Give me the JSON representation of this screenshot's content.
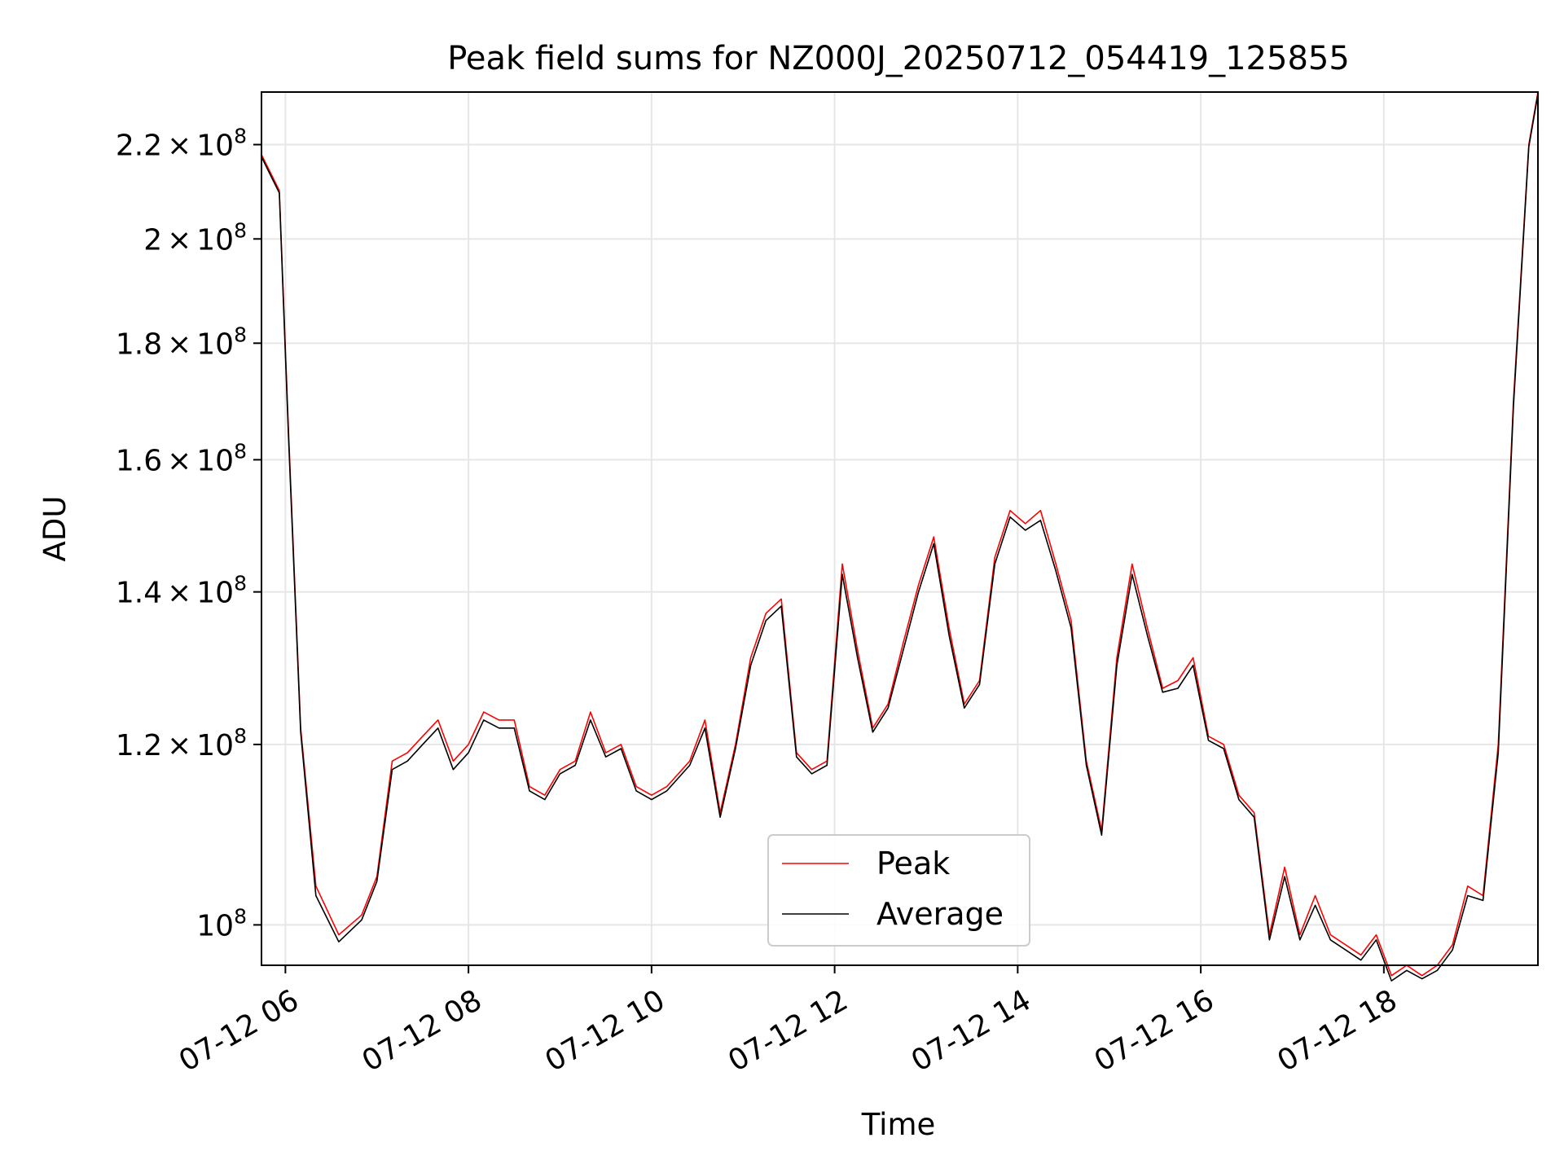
{
  "chart_data": {
    "type": "line",
    "title": "Peak field sums for NZ000J_20250712_054419_125855",
    "xlabel": "Time",
    "ylabel": "ADU",
    "y_scale": "log",
    "xlim": [
      "2025-07-12 05:44:19",
      "2025-07-12 19:41:00"
    ],
    "ylim": [
      96000000,
      232000000
    ],
    "grid": true,
    "legend_position": "lower center",
    "x_ticks": [
      {
        "value": "2025-07-12 06:00",
        "label": "07-12 06"
      },
      {
        "value": "2025-07-12 08:00",
        "label": "07-12 08"
      },
      {
        "value": "2025-07-12 10:00",
        "label": "07-12 10"
      },
      {
        "value": "2025-07-12 12:00",
        "label": "07-12 12"
      },
      {
        "value": "2025-07-12 14:00",
        "label": "07-12 14"
      },
      {
        "value": "2025-07-12 16:00",
        "label": "07-12 16"
      },
      {
        "value": "2025-07-12 18:00",
        "label": "07-12 18"
      }
    ],
    "y_ticks": [
      {
        "value": 100000000,
        "mantissa": "",
        "exponent": "8"
      },
      {
        "value": 120000000,
        "mantissa": "1.2",
        "exponent": "8"
      },
      {
        "value": 140000000,
        "mantissa": "1.4",
        "exponent": "8"
      },
      {
        "value": 160000000,
        "mantissa": "1.6",
        "exponent": "8"
      },
      {
        "value": 180000000,
        "mantissa": "1.8",
        "exponent": "8"
      },
      {
        "value": 200000000,
        "mantissa": "2",
        "exponent": "8"
      },
      {
        "value": 220000000,
        "mantissa": "2.2",
        "exponent": "8"
      }
    ],
    "series": [
      {
        "name": "Peak",
        "color": "#ff0000",
        "x": [
          "2025-07-12 05:44",
          "2025-07-12 05:56",
          "2025-07-12 06:02",
          "2025-07-12 06:10",
          "2025-07-12 06:20",
          "2025-07-12 06:35",
          "2025-07-12 06:50",
          "2025-07-12 07:00",
          "2025-07-12 07:10",
          "2025-07-12 07:20",
          "2025-07-12 07:30",
          "2025-07-12 07:40",
          "2025-07-12 07:50",
          "2025-07-12 08:00",
          "2025-07-12 08:10",
          "2025-07-12 08:20",
          "2025-07-12 08:30",
          "2025-07-12 08:40",
          "2025-07-12 08:50",
          "2025-07-12 09:00",
          "2025-07-12 09:10",
          "2025-07-12 09:20",
          "2025-07-12 09:30",
          "2025-07-12 09:40",
          "2025-07-12 09:50",
          "2025-07-12 10:00",
          "2025-07-12 10:10",
          "2025-07-12 10:25",
          "2025-07-12 10:35",
          "2025-07-12 10:45",
          "2025-07-12 10:55",
          "2025-07-12 11:05",
          "2025-07-12 11:15",
          "2025-07-12 11:25",
          "2025-07-12 11:35",
          "2025-07-12 11:45",
          "2025-07-12 11:55",
          "2025-07-12 12:05",
          "2025-07-12 12:15",
          "2025-07-12 12:25",
          "2025-07-12 12:35",
          "2025-07-12 12:45",
          "2025-07-12 12:55",
          "2025-07-12 13:05",
          "2025-07-12 13:15",
          "2025-07-12 13:25",
          "2025-07-12 13:35",
          "2025-07-12 13:45",
          "2025-07-12 13:55",
          "2025-07-12 14:05",
          "2025-07-12 14:15",
          "2025-07-12 14:25",
          "2025-07-12 14:35",
          "2025-07-12 14:45",
          "2025-07-12 14:55",
          "2025-07-12 15:05",
          "2025-07-12 15:15",
          "2025-07-12 15:25",
          "2025-07-12 15:35",
          "2025-07-12 15:45",
          "2025-07-12 15:55",
          "2025-07-12 16:05",
          "2025-07-12 16:15",
          "2025-07-12 16:25",
          "2025-07-12 16:35",
          "2025-07-12 16:45",
          "2025-07-12 16:55",
          "2025-07-12 17:05",
          "2025-07-12 17:15",
          "2025-07-12 17:25",
          "2025-07-12 17:35",
          "2025-07-12 17:45",
          "2025-07-12 17:55",
          "2025-07-12 18:05",
          "2025-07-12 18:15",
          "2025-07-12 18:25",
          "2025-07-12 18:35",
          "2025-07-12 18:45",
          "2025-07-12 18:55",
          "2025-07-12 19:05",
          "2025-07-12 19:15",
          "2025-07-12 19:25",
          "2025-07-12 19:35",
          "2025-07-12 19:41"
        ],
        "values": [
          218000000,
          210000000,
          165000000,
          122000000,
          104000000,
          99000000,
          101000000,
          105000000,
          118000000,
          119000000,
          121000000,
          123000000,
          118000000,
          120000000,
          124000000,
          123000000,
          123000000,
          115000000,
          114000000,
          117000000,
          118000000,
          124000000,
          119000000,
          120000000,
          115000000,
          114000000,
          115000000,
          118000000,
          123000000,
          112000000,
          120000000,
          131000000,
          137000000,
          139000000,
          119000000,
          117000000,
          118000000,
          144000000,
          132000000,
          122000000,
          125000000,
          133000000,
          141000000,
          148000000,
          135000000,
          125000000,
          128000000,
          145000000,
          152000000,
          150000000,
          152000000,
          144000000,
          136000000,
          118000000,
          110000000,
          131000000,
          144000000,
          135000000,
          127000000,
          128000000,
          131000000,
          121000000,
          120000000,
          114000000,
          112000000,
          99000000,
          106000000,
          99000000,
          103000000,
          99000000,
          98000000,
          97000000,
          99000000,
          95000000,
          96000000,
          95000000,
          96000000,
          98000000,
          104000000,
          103000000,
          120000000,
          170000000,
          220000000,
          232000000
        ]
      },
      {
        "name": "Average",
        "color": "#000000",
        "x": [
          "2025-07-12 05:44",
          "2025-07-12 05:56",
          "2025-07-12 06:02",
          "2025-07-12 06:10",
          "2025-07-12 06:20",
          "2025-07-12 06:35",
          "2025-07-12 06:50",
          "2025-07-12 07:00",
          "2025-07-12 07:10",
          "2025-07-12 07:20",
          "2025-07-12 07:30",
          "2025-07-12 07:40",
          "2025-07-12 07:50",
          "2025-07-12 08:00",
          "2025-07-12 08:10",
          "2025-07-12 08:20",
          "2025-07-12 08:30",
          "2025-07-12 08:40",
          "2025-07-12 08:50",
          "2025-07-12 09:00",
          "2025-07-12 09:10",
          "2025-07-12 09:20",
          "2025-07-12 09:30",
          "2025-07-12 09:40",
          "2025-07-12 09:50",
          "2025-07-12 10:00",
          "2025-07-12 10:10",
          "2025-07-12 10:25",
          "2025-07-12 10:35",
          "2025-07-12 10:45",
          "2025-07-12 10:55",
          "2025-07-12 11:05",
          "2025-07-12 11:15",
          "2025-07-12 11:25",
          "2025-07-12 11:35",
          "2025-07-12 11:45",
          "2025-07-12 11:55",
          "2025-07-12 12:05",
          "2025-07-12 12:15",
          "2025-07-12 12:25",
          "2025-07-12 12:35",
          "2025-07-12 12:45",
          "2025-07-12 12:55",
          "2025-07-12 13:05",
          "2025-07-12 13:15",
          "2025-07-12 13:25",
          "2025-07-12 13:35",
          "2025-07-12 13:45",
          "2025-07-12 13:55",
          "2025-07-12 14:05",
          "2025-07-12 14:15",
          "2025-07-12 14:25",
          "2025-07-12 14:35",
          "2025-07-12 14:45",
          "2025-07-12 14:55",
          "2025-07-12 15:05",
          "2025-07-12 15:15",
          "2025-07-12 15:25",
          "2025-07-12 15:35",
          "2025-07-12 15:45",
          "2025-07-12 15:55",
          "2025-07-12 16:05",
          "2025-07-12 16:15",
          "2025-07-12 16:25",
          "2025-07-12 16:35",
          "2025-07-12 16:45",
          "2025-07-12 16:55",
          "2025-07-12 17:05",
          "2025-07-12 17:15",
          "2025-07-12 17:25",
          "2025-07-12 17:35",
          "2025-07-12 17:45",
          "2025-07-12 17:55",
          "2025-07-12 18:05",
          "2025-07-12 18:15",
          "2025-07-12 18:25",
          "2025-07-12 18:35",
          "2025-07-12 18:45",
          "2025-07-12 18:55",
          "2025-07-12 19:05",
          "2025-07-12 19:15",
          "2025-07-12 19:25",
          "2025-07-12 19:35",
          "2025-07-12 19:41"
        ],
        "values": [
          217500000,
          209500000,
          164000000,
          121500000,
          103000000,
          98300000,
          100500000,
          104500000,
          117000000,
          118000000,
          120000000,
          122000000,
          117000000,
          119000000,
          123000000,
          122000000,
          122000000,
          114500000,
          113500000,
          116500000,
          117500000,
          123000000,
          118500000,
          119500000,
          114500000,
          113500000,
          114500000,
          117500000,
          122000000,
          111500000,
          119500000,
          130000000,
          136000000,
          138000000,
          118500000,
          116500000,
          117500000,
          142500000,
          131000000,
          121500000,
          124500000,
          132000000,
          140000000,
          147000000,
          134000000,
          124500000,
          127500000,
          144000000,
          151000000,
          149000000,
          150500000,
          143000000,
          135000000,
          117500000,
          109500000,
          130000000,
          142500000,
          134000000,
          126500000,
          127000000,
          130000000,
          120500000,
          119500000,
          113500000,
          111500000,
          98500000,
          105000000,
          98500000,
          102000000,
          98500000,
          97500000,
          96500000,
          98500000,
          94500000,
          95500000,
          94700000,
          95500000,
          97500000,
          103000000,
          102500000,
          119000000,
          169000000,
          219500000,
          231500000
        ]
      }
    ]
  }
}
